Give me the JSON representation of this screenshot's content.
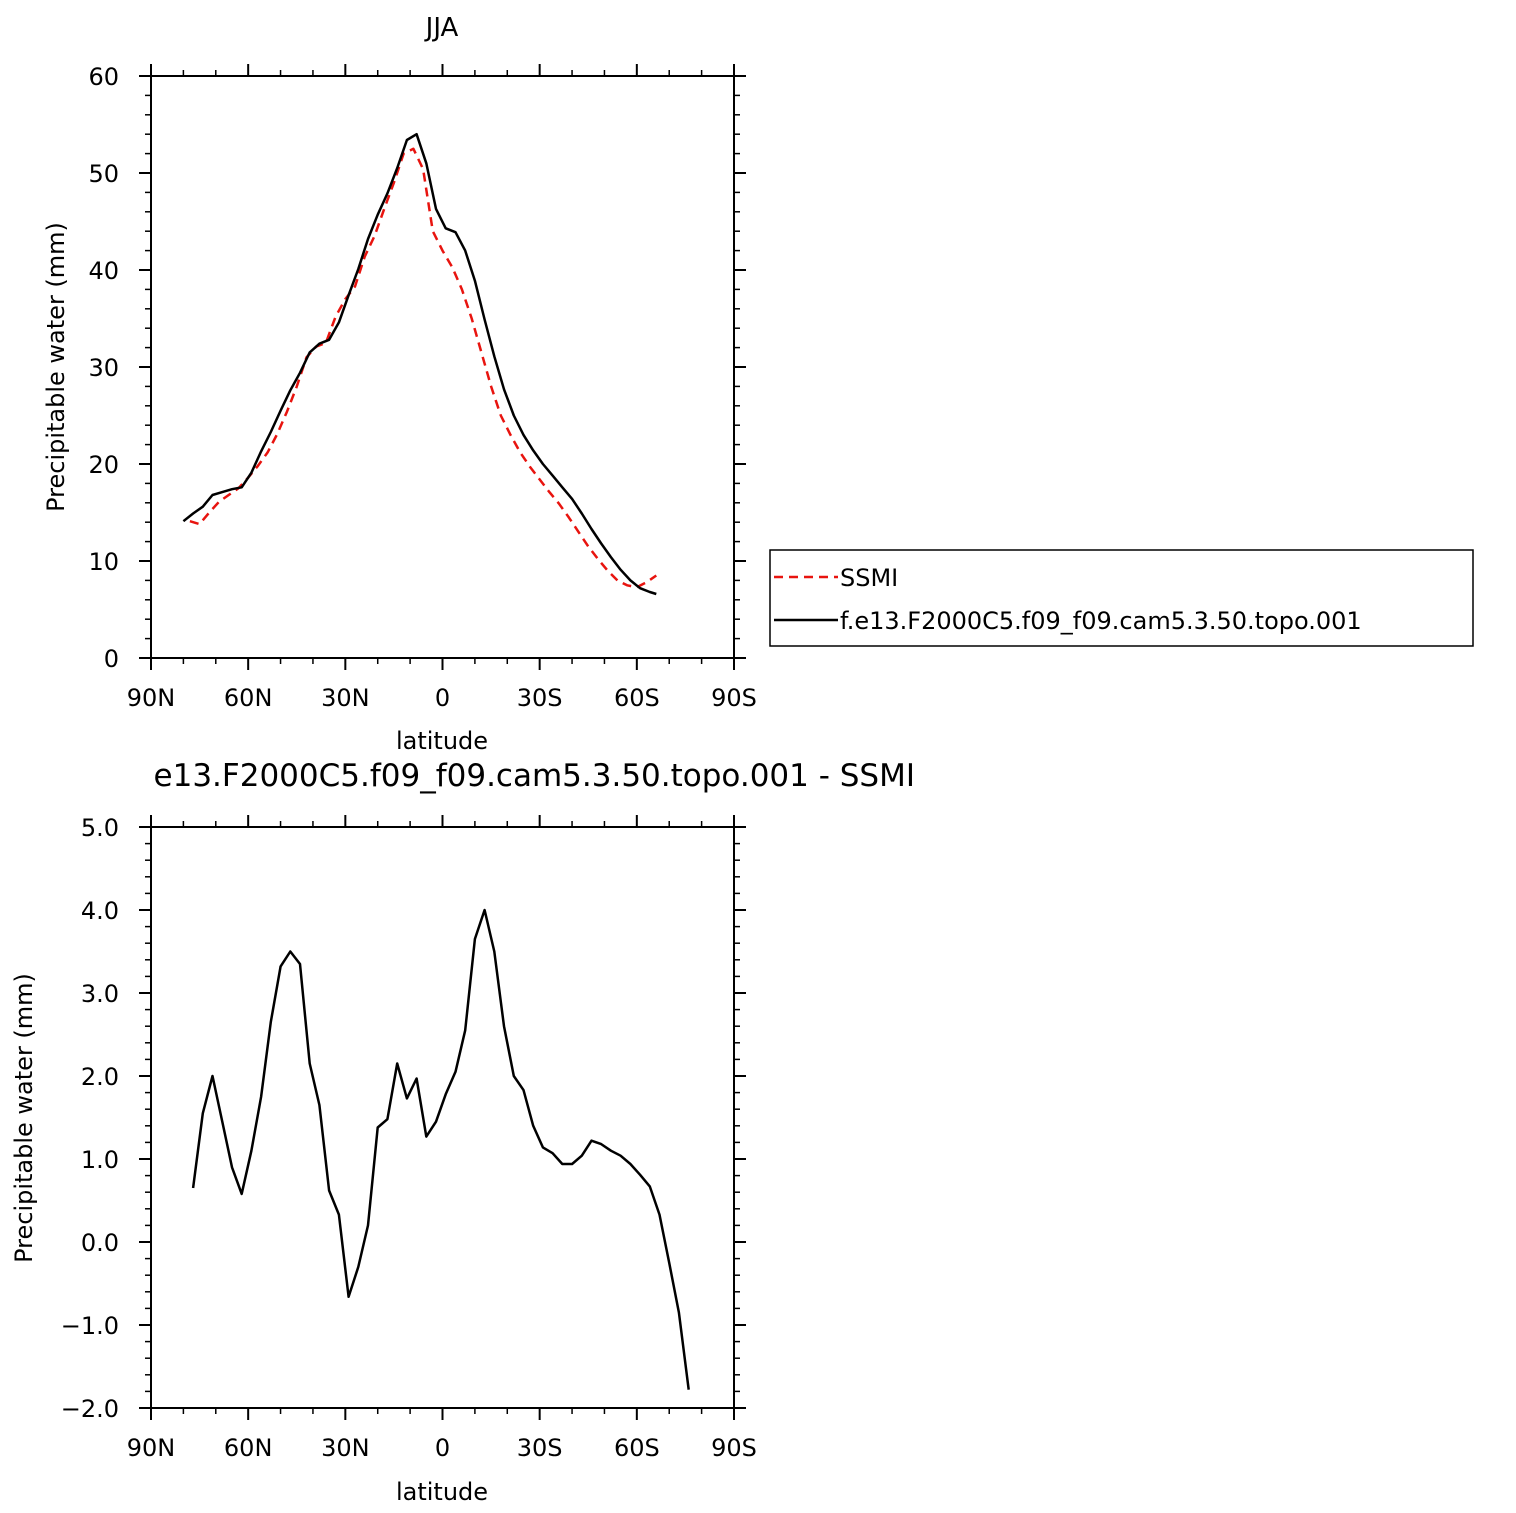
{
  "chart_data": [
    {
      "type": "line",
      "title": "JJA",
      "xlabel": "latitude",
      "ylabel": "Precipitable water (mm)",
      "xlim": [
        90,
        -90
      ],
      "ylim": [
        0,
        60
      ],
      "x_ticks": [
        {
          "value": 90,
          "label": "90N"
        },
        {
          "value": 60,
          "label": "60N"
        },
        {
          "value": 30,
          "label": "30N"
        },
        {
          "value": 0,
          "label": "0"
        },
        {
          "value": -30,
          "label": "30S"
        },
        {
          "value": -60,
          "label": "60S"
        },
        {
          "value": -90,
          "label": "90S"
        }
      ],
      "y_ticks": [
        {
          "value": 0,
          "label": "0"
        },
        {
          "value": 10,
          "label": "10"
        },
        {
          "value": 20,
          "label": "20"
        },
        {
          "value": 30,
          "label": "30"
        },
        {
          "value": 40,
          "label": "40"
        },
        {
          "value": 50,
          "label": "50"
        },
        {
          "value": 60,
          "label": "60"
        }
      ],
      "legend_position": "right",
      "series": [
        {
          "name": "SSMI",
          "color": "#e8140f",
          "dash": true,
          "points": [
            [
              78,
              14.1
            ],
            [
              75,
              13.8
            ],
            [
              72,
              15
            ],
            [
              69,
              16.1
            ],
            [
              66,
              16.8
            ],
            [
              63,
              17.5
            ],
            [
              60,
              18.6
            ],
            [
              57,
              19.8
            ],
            [
              54,
              21.2
            ],
            [
              51,
              23.1
            ],
            [
              48,
              25.4
            ],
            [
              45,
              28
            ],
            [
              42,
              31
            ],
            [
              39,
              32.1
            ],
            [
              36,
              32.5
            ],
            [
              33,
              35.2
            ],
            [
              30,
              37
            ],
            [
              27,
              38.3
            ],
            [
              24,
              41.4
            ],
            [
              21,
              43.5
            ],
            [
              18,
              46.3
            ],
            [
              15,
              49
            ],
            [
              12,
              52
            ],
            [
              9,
              52.5
            ],
            [
              6,
              50.4
            ],
            [
              3,
              44
            ],
            [
              0,
              42
            ],
            [
              -3,
              40.3
            ],
            [
              -6,
              38
            ],
            [
              -9,
              35
            ],
            [
              -12,
              31.5
            ],
            [
              -15,
              28
            ],
            [
              -18,
              25
            ],
            [
              -21,
              23
            ],
            [
              -24,
              21.2
            ],
            [
              -27,
              19.7
            ],
            [
              -30,
              18.4
            ],
            [
              -33,
              17.1
            ],
            [
              -36,
              15.9
            ],
            [
              -39,
              14.5
            ],
            [
              -42,
              13
            ],
            [
              -45,
              11.5
            ],
            [
              -48,
              10.2
            ],
            [
              -51,
              9
            ],
            [
              -54,
              8
            ],
            [
              -57,
              7.5
            ],
            [
              -60,
              7.3
            ],
            [
              -63,
              7.8
            ],
            [
              -66,
              8.5
            ]
          ]
        },
        {
          "name": "f.e13.F2000C5.f09_f09.cam5.3.50.topo.001",
          "color": "#000000",
          "dash": false,
          "points": [
            [
              80,
              14.1
            ],
            [
              77,
              14.9
            ],
            [
              74,
              15.6
            ],
            [
              71,
              16.8
            ],
            [
              68,
              17.1
            ],
            [
              65,
              17.4
            ],
            [
              62,
              17.6
            ],
            [
              59,
              19.1
            ],
            [
              56,
              21.3
            ],
            [
              53,
              23.3
            ],
            [
              50,
              25.5
            ],
            [
              47,
              27.6
            ],
            [
              44,
              29.4
            ],
            [
              41,
              31.5
            ],
            [
              38,
              32.4
            ],
            [
              35,
              32.8
            ],
            [
              32,
              34.6
            ],
            [
              29,
              37.4
            ],
            [
              26,
              40.1
            ],
            [
              23,
              43.2
            ],
            [
              20,
              45.7
            ],
            [
              17,
              47.9
            ],
            [
              14,
              50.5
            ],
            [
              11,
              53.4
            ],
            [
              8,
              54
            ],
            [
              5,
              51
            ],
            [
              2,
              46.3
            ],
            [
              -1,
              44.3
            ],
            [
              -4,
              43.9
            ],
            [
              -7,
              42
            ],
            [
              -10,
              38.9
            ],
            [
              -13,
              34.9
            ],
            [
              -16,
              31.1
            ],
            [
              -19,
              27.7
            ],
            [
              -22,
              25
            ],
            [
              -25,
              23
            ],
            [
              -28,
              21.4
            ],
            [
              -31,
              20
            ],
            [
              -34,
              18.8
            ],
            [
              -37,
              17.6
            ],
            [
              -40,
              16.4
            ],
            [
              -43,
              14.9
            ],
            [
              -46,
              13.3
            ],
            [
              -49,
              11.8
            ],
            [
              -52,
              10.4
            ],
            [
              -55,
              9.1
            ],
            [
              -58,
              8
            ],
            [
              -61,
              7.2
            ],
            [
              -64,
              6.8
            ],
            [
              -66,
              6.6
            ]
          ]
        }
      ]
    },
    {
      "type": "line",
      "title": "e13.F2000C5.f09_f09.cam5.3.50.topo.001 - SSMI",
      "xlabel": "latitude",
      "ylabel": "Precipitable water (mm)",
      "xlim": [
        90,
        -90
      ],
      "ylim": [
        -2.0,
        5.0
      ],
      "x_ticks": [
        {
          "value": 90,
          "label": "90N"
        },
        {
          "value": 60,
          "label": "60N"
        },
        {
          "value": 30,
          "label": "30N"
        },
        {
          "value": 0,
          "label": "0"
        },
        {
          "value": -30,
          "label": "30S"
        },
        {
          "value": -60,
          "label": "60S"
        },
        {
          "value": -90,
          "label": "90S"
        }
      ],
      "y_ticks": [
        {
          "value": -2,
          "label": "−2.0"
        },
        {
          "value": -1,
          "label": "−1.0"
        },
        {
          "value": 0,
          "label": "0.0"
        },
        {
          "value": 1,
          "label": "1.0"
        },
        {
          "value": 2,
          "label": "2.0"
        },
        {
          "value": 3,
          "label": "3.0"
        },
        {
          "value": 4,
          "label": "4.0"
        },
        {
          "value": 5,
          "label": "5.0"
        }
      ],
      "series": [
        {
          "color": "#000000",
          "dash": false,
          "points": [
            [
              77,
              0.65
            ],
            [
              74,
              1.55
            ],
            [
              71,
              2
            ],
            [
              68,
              1.45
            ],
            [
              65,
              0.9
            ],
            [
              62,
              0.58
            ],
            [
              59,
              1.1
            ],
            [
              56,
              1.75
            ],
            [
              53,
              2.65
            ],
            [
              50,
              3.32
            ],
            [
              47,
              3.5
            ],
            [
              44,
              3.35
            ],
            [
              41,
              2.15
            ],
            [
              38,
              1.65
            ],
            [
              35,
              0.62
            ],
            [
              32,
              0.33
            ],
            [
              29,
              -0.66
            ],
            [
              26,
              -0.3
            ],
            [
              23,
              0.2
            ],
            [
              20,
              1.38
            ],
            [
              17,
              1.48
            ],
            [
              14,
              2.15
            ],
            [
              11,
              1.73
            ],
            [
              8,
              1.97
            ],
            [
              5,
              1.27
            ],
            [
              2,
              1.45
            ],
            [
              -1,
              1.78
            ],
            [
              -4,
              2.05
            ],
            [
              -7,
              2.55
            ],
            [
              -10,
              3.65
            ],
            [
              -13,
              4
            ],
            [
              -16,
              3.5
            ],
            [
              -19,
              2.6
            ],
            [
              -22,
              2
            ],
            [
              -25,
              1.83
            ],
            [
              -28,
              1.4
            ],
            [
              -31,
              1.14
            ],
            [
              -34,
              1.07
            ],
            [
              -37,
              0.94
            ],
            [
              -40,
              0.94
            ],
            [
              -43,
              1.04
            ],
            [
              -46,
              1.22
            ],
            [
              -49,
              1.18
            ],
            [
              -52,
              1.1
            ],
            [
              -55,
              1.04
            ],
            [
              -58,
              0.94
            ],
            [
              -61,
              0.81
            ],
            [
              -64,
              0.67
            ],
            [
              -67,
              0.33
            ],
            [
              -70,
              -0.25
            ],
            [
              -73,
              -0.85
            ],
            [
              -76,
              -1.78
            ]
          ]
        }
      ]
    }
  ]
}
